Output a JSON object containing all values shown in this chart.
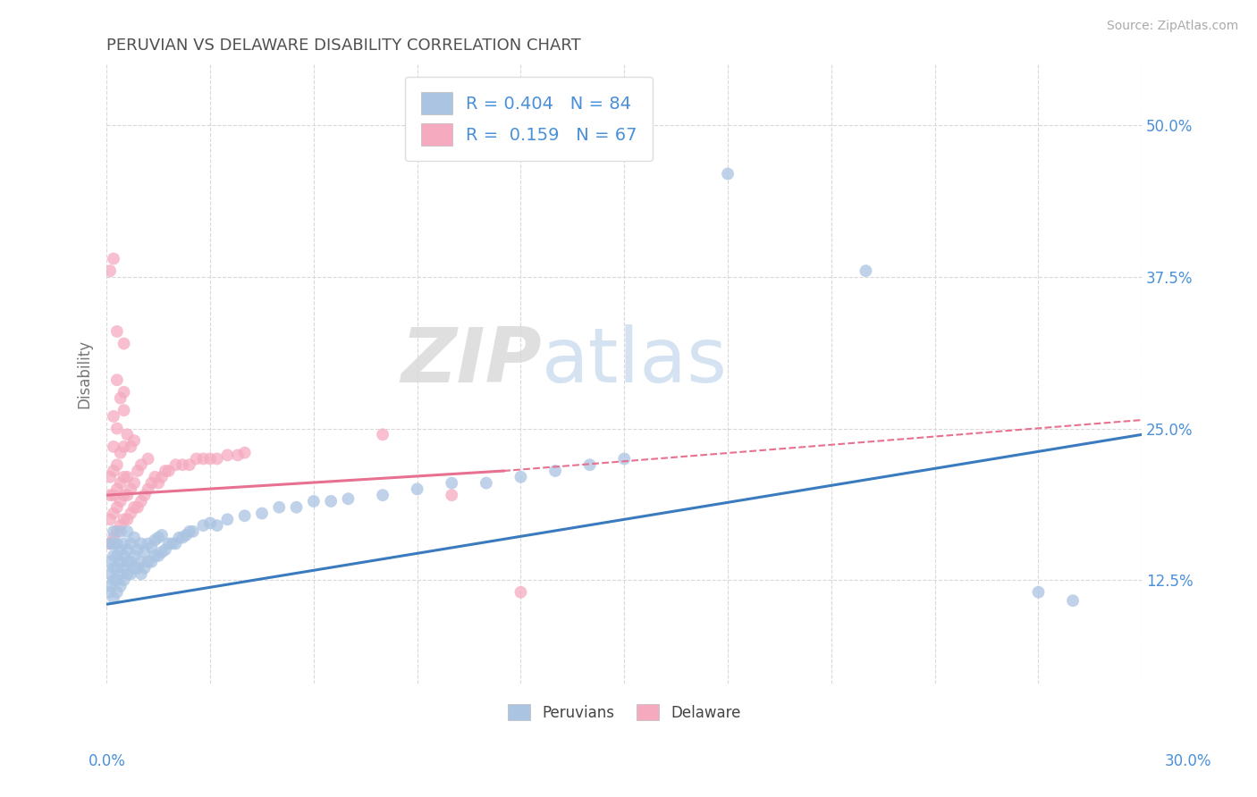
{
  "title": "PERUVIAN VS DELAWARE DISABILITY CORRELATION CHART",
  "source": "Source: ZipAtlas.com",
  "ylabel": "Disability",
  "ytick_values": [
    0.125,
    0.25,
    0.375,
    0.5
  ],
  "xlim": [
    0.0,
    0.3
  ],
  "ylim": [
    0.04,
    0.55
  ],
  "legend_peruvians_label": "Peruvians",
  "legend_delaware_label": "Delaware",
  "peruvians_R": 0.404,
  "peruvians_N": 84,
  "delaware_R": 0.159,
  "delaware_N": 67,
  "peruvians_color": "#aac4e2",
  "delaware_color": "#f5aabf",
  "peruvians_line_color": "#3a7bbf",
  "delaware_line_color": "#e87090",
  "watermark_zip": "ZIP",
  "watermark_atlas": "atlas",
  "title_color": "#505050",
  "axis_label_color": "#4a90d9",
  "tick_label_color": "#4a90d9",
  "grid_color": "#d8d8d8",
  "peruvians_scatter": [
    [
      0.001,
      0.115
    ],
    [
      0.001,
      0.12
    ],
    [
      0.001,
      0.13
    ],
    [
      0.001,
      0.14
    ],
    [
      0.001,
      0.155
    ],
    [
      0.002,
      0.11
    ],
    [
      0.002,
      0.125
    ],
    [
      0.002,
      0.135
    ],
    [
      0.002,
      0.145
    ],
    [
      0.002,
      0.155
    ],
    [
      0.002,
      0.165
    ],
    [
      0.003,
      0.115
    ],
    [
      0.003,
      0.125
    ],
    [
      0.003,
      0.135
    ],
    [
      0.003,
      0.145
    ],
    [
      0.003,
      0.155
    ],
    [
      0.004,
      0.12
    ],
    [
      0.004,
      0.13
    ],
    [
      0.004,
      0.14
    ],
    [
      0.004,
      0.15
    ],
    [
      0.004,
      0.165
    ],
    [
      0.005,
      0.125
    ],
    [
      0.005,
      0.135
    ],
    [
      0.005,
      0.145
    ],
    [
      0.005,
      0.155
    ],
    [
      0.006,
      0.13
    ],
    [
      0.006,
      0.14
    ],
    [
      0.006,
      0.15
    ],
    [
      0.006,
      0.165
    ],
    [
      0.007,
      0.13
    ],
    [
      0.007,
      0.14
    ],
    [
      0.007,
      0.155
    ],
    [
      0.008,
      0.135
    ],
    [
      0.008,
      0.145
    ],
    [
      0.008,
      0.16
    ],
    [
      0.009,
      0.135
    ],
    [
      0.009,
      0.15
    ],
    [
      0.01,
      0.13
    ],
    [
      0.01,
      0.14
    ],
    [
      0.01,
      0.155
    ],
    [
      0.011,
      0.135
    ],
    [
      0.011,
      0.148
    ],
    [
      0.012,
      0.14
    ],
    [
      0.012,
      0.155
    ],
    [
      0.013,
      0.14
    ],
    [
      0.013,
      0.152
    ],
    [
      0.014,
      0.145
    ],
    [
      0.014,
      0.158
    ],
    [
      0.015,
      0.145
    ],
    [
      0.015,
      0.16
    ],
    [
      0.016,
      0.148
    ],
    [
      0.016,
      0.162
    ],
    [
      0.017,
      0.15
    ],
    [
      0.018,
      0.155
    ],
    [
      0.019,
      0.155
    ],
    [
      0.02,
      0.155
    ],
    [
      0.021,
      0.16
    ],
    [
      0.022,
      0.16
    ],
    [
      0.023,
      0.162
    ],
    [
      0.024,
      0.165
    ],
    [
      0.025,
      0.165
    ],
    [
      0.028,
      0.17
    ],
    [
      0.03,
      0.172
    ],
    [
      0.032,
      0.17
    ],
    [
      0.035,
      0.175
    ],
    [
      0.04,
      0.178
    ],
    [
      0.045,
      0.18
    ],
    [
      0.05,
      0.185
    ],
    [
      0.055,
      0.185
    ],
    [
      0.06,
      0.19
    ],
    [
      0.065,
      0.19
    ],
    [
      0.07,
      0.192
    ],
    [
      0.08,
      0.195
    ],
    [
      0.09,
      0.2
    ],
    [
      0.1,
      0.205
    ],
    [
      0.11,
      0.205
    ],
    [
      0.12,
      0.21
    ],
    [
      0.13,
      0.215
    ],
    [
      0.14,
      0.22
    ],
    [
      0.15,
      0.225
    ],
    [
      0.18,
      0.46
    ],
    [
      0.22,
      0.38
    ],
    [
      0.27,
      0.115
    ],
    [
      0.28,
      0.108
    ]
  ],
  "delaware_scatter": [
    [
      0.001,
      0.155
    ],
    [
      0.001,
      0.175
    ],
    [
      0.001,
      0.195
    ],
    [
      0.001,
      0.21
    ],
    [
      0.002,
      0.16
    ],
    [
      0.002,
      0.18
    ],
    [
      0.002,
      0.195
    ],
    [
      0.002,
      0.215
    ],
    [
      0.002,
      0.235
    ],
    [
      0.002,
      0.26
    ],
    [
      0.003,
      0.165
    ],
    [
      0.003,
      0.185
    ],
    [
      0.003,
      0.2
    ],
    [
      0.003,
      0.22
    ],
    [
      0.003,
      0.25
    ],
    [
      0.003,
      0.29
    ],
    [
      0.004,
      0.17
    ],
    [
      0.004,
      0.19
    ],
    [
      0.004,
      0.205
    ],
    [
      0.004,
      0.23
    ],
    [
      0.004,
      0.275
    ],
    [
      0.005,
      0.175
    ],
    [
      0.005,
      0.195
    ],
    [
      0.005,
      0.21
    ],
    [
      0.005,
      0.235
    ],
    [
      0.005,
      0.265
    ],
    [
      0.005,
      0.32
    ],
    [
      0.006,
      0.175
    ],
    [
      0.006,
      0.195
    ],
    [
      0.006,
      0.21
    ],
    [
      0.006,
      0.245
    ],
    [
      0.007,
      0.18
    ],
    [
      0.007,
      0.2
    ],
    [
      0.007,
      0.235
    ],
    [
      0.008,
      0.185
    ],
    [
      0.008,
      0.205
    ],
    [
      0.008,
      0.24
    ],
    [
      0.009,
      0.185
    ],
    [
      0.009,
      0.215
    ],
    [
      0.01,
      0.19
    ],
    [
      0.01,
      0.22
    ],
    [
      0.011,
      0.195
    ],
    [
      0.012,
      0.2
    ],
    [
      0.012,
      0.225
    ],
    [
      0.013,
      0.205
    ],
    [
      0.014,
      0.21
    ],
    [
      0.015,
      0.205
    ],
    [
      0.016,
      0.21
    ],
    [
      0.017,
      0.215
    ],
    [
      0.018,
      0.215
    ],
    [
      0.02,
      0.22
    ],
    [
      0.022,
      0.22
    ],
    [
      0.024,
      0.22
    ],
    [
      0.026,
      0.225
    ],
    [
      0.028,
      0.225
    ],
    [
      0.03,
      0.225
    ],
    [
      0.032,
      0.225
    ],
    [
      0.035,
      0.228
    ],
    [
      0.038,
      0.228
    ],
    [
      0.04,
      0.23
    ],
    [
      0.001,
      0.38
    ],
    [
      0.002,
      0.39
    ],
    [
      0.003,
      0.33
    ],
    [
      0.005,
      0.28
    ],
    [
      0.08,
      0.245
    ],
    [
      0.1,
      0.195
    ],
    [
      0.12,
      0.115
    ]
  ]
}
